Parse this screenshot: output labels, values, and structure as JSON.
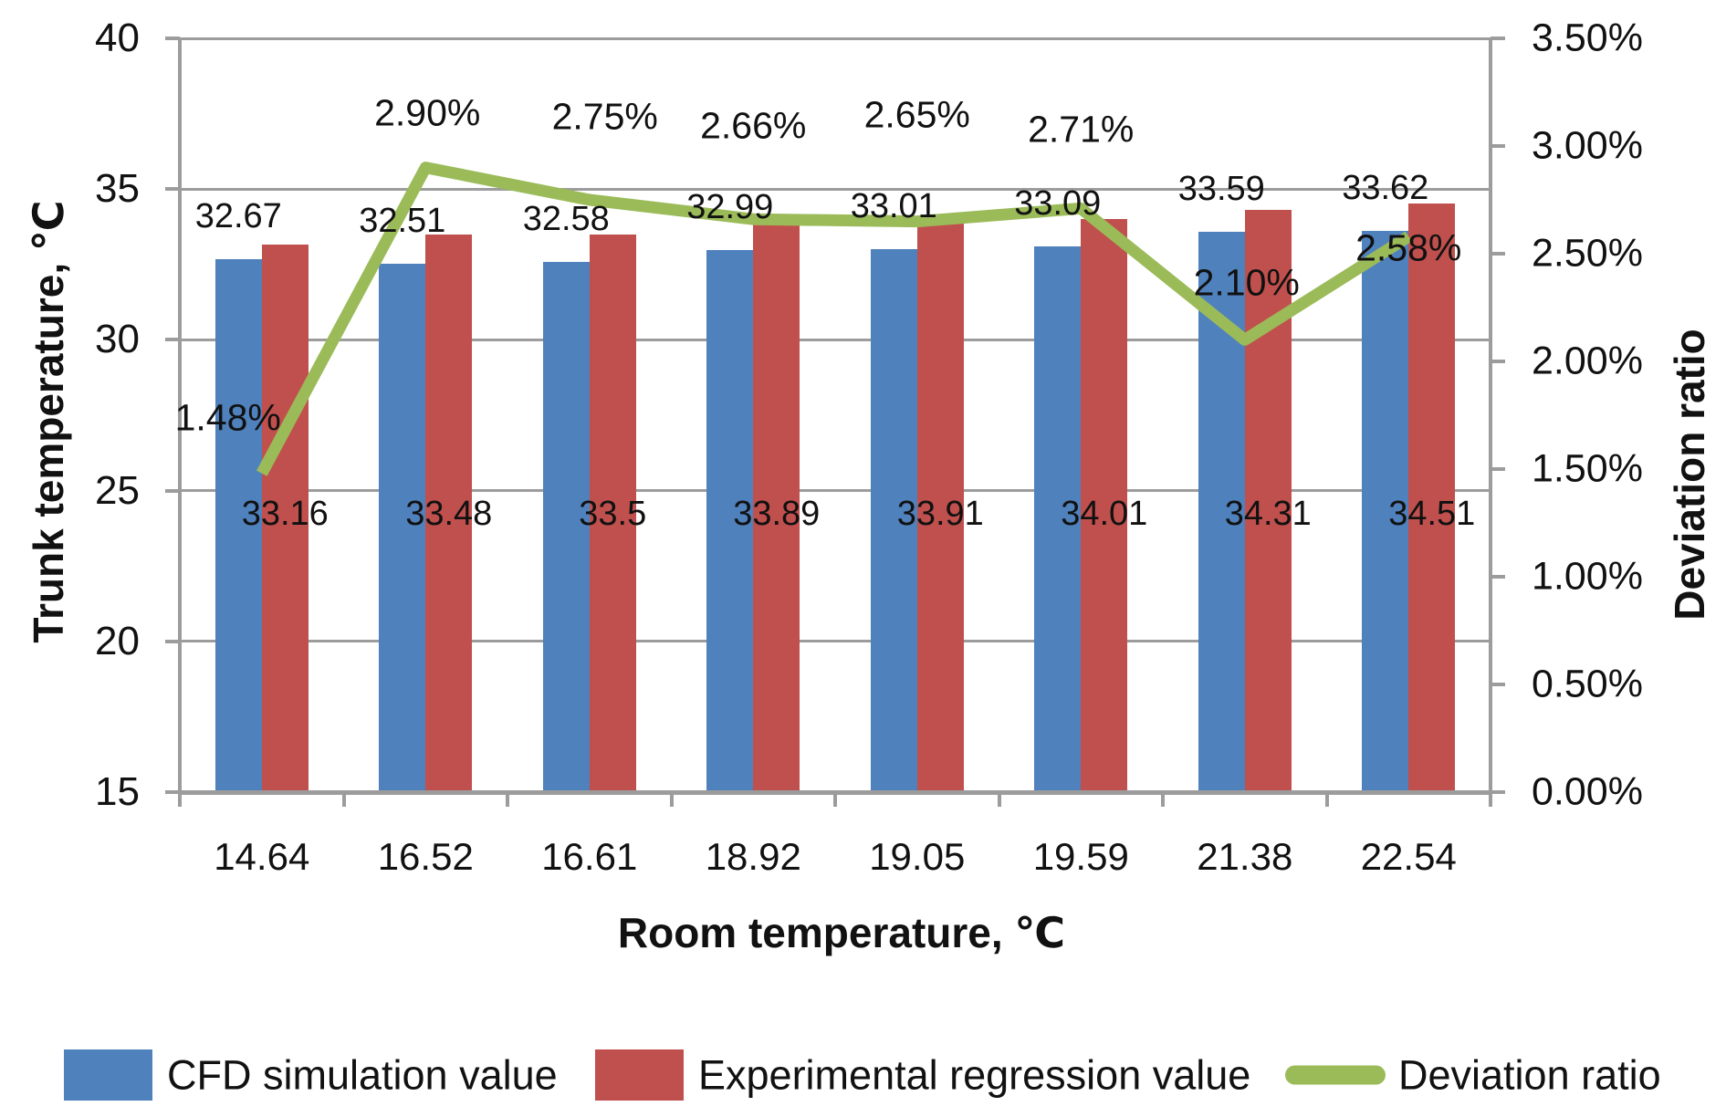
{
  "chart_data": {
    "type": "bar+line combo",
    "categories": [
      "14.64",
      "16.52",
      "16.61",
      "18.92",
      "19.05",
      "19.59",
      "21.38",
      "22.54"
    ],
    "series": [
      {
        "name": "CFD simulation value",
        "type": "bar",
        "color": "#4F81BD",
        "axis": "left",
        "values": [
          32.67,
          32.51,
          32.58,
          32.99,
          33.01,
          33.09,
          33.59,
          33.62
        ],
        "labels": [
          "32.67",
          "32.51",
          "32.58",
          "32.99",
          "33.01",
          "33.09",
          "33.59",
          "33.62"
        ]
      },
      {
        "name": "Experimental regression value",
        "type": "bar",
        "color": "#C0504D",
        "axis": "left",
        "values": [
          33.16,
          33.48,
          33.5,
          33.89,
          33.91,
          34.01,
          34.31,
          34.51
        ],
        "labels": [
          "33.16",
          "33.48",
          "33.5",
          "33.89",
          "33.91",
          "34.01",
          "34.31",
          "34.51"
        ]
      },
      {
        "name": "Deviation ratio",
        "type": "line",
        "color": "#9BBB59",
        "axis": "right",
        "values": [
          1.48,
          2.9,
          2.75,
          2.66,
          2.65,
          2.71,
          2.1,
          2.58
        ],
        "labels": [
          "1.48%",
          "2.90%",
          "2.75%",
          "2.66%",
          "2.65%",
          "2.71%",
          "2.10%",
          "2.58%"
        ]
      }
    ],
    "left_axis": {
      "title": "Trunk temperature, ℃",
      "min": 15,
      "max": 40,
      "step": 5,
      "ticks": [
        "40",
        "35",
        "30",
        "25",
        "20",
        "15"
      ]
    },
    "right_axis": {
      "title": "Deviation ratio",
      "min": 0,
      "max": 3.5,
      "step": 0.5,
      "ticks": [
        "3.50%",
        "3.00%",
        "2.50%",
        "2.00%",
        "1.50%",
        "1.00%",
        "0.50%",
        "0.00%"
      ]
    },
    "x_axis": {
      "title": "Room temperature, ℃"
    },
    "grid": "horizontal gridlines at left-axis steps",
    "legend_position": "bottom",
    "legend": [
      {
        "label": "CFD simulation value",
        "swatch": "bar",
        "color": "#4F81BD"
      },
      {
        "label": "Experimental regression value",
        "swatch": "bar",
        "color": "#C0504D"
      },
      {
        "label": "Deviation ratio",
        "swatch": "line",
        "color": "#9BBB59"
      }
    ]
  }
}
